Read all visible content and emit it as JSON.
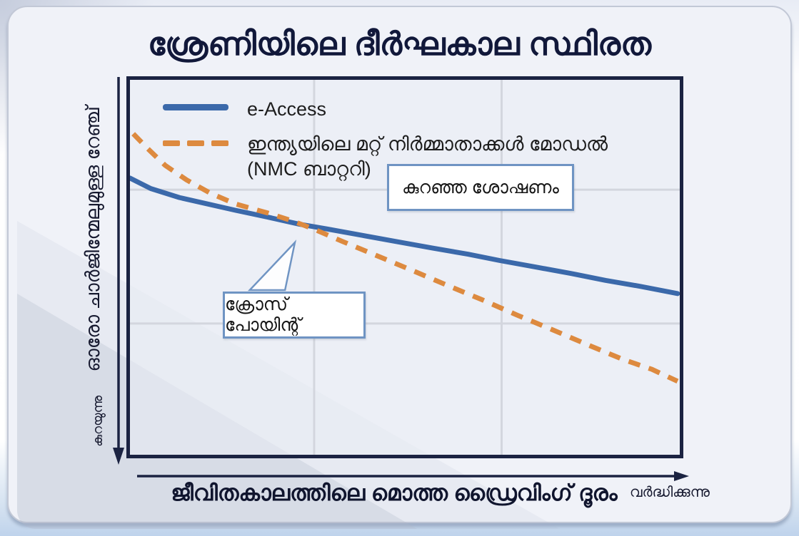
{
  "title": "ശ്രേണിയിലെ ദീർഘകാല സ്ഥിരത",
  "legend": {
    "series1": "e-Access",
    "series2_line1": "ഇന്ത്യയിലെ മറ്റ് നിർമ്മാതാക്കൾ മോഡൽ",
    "series2_line2": "(NMC ബാറ്ററി)"
  },
  "annotations": {
    "low_degradation": "കുറഞ്ഞ ശോഷണം",
    "cross_point": "ക്രോസ് പോയിന്റ്"
  },
  "y_axis": {
    "label": "ഓരോ ചാർജിന്മേലുമുള്ള റേഞ്ച്",
    "direction_label": "കുറയുന്നു"
  },
  "x_axis": {
    "label": "ജീവിതകാലത്തിലെ മൊത്ത ഡ്രൈവിംഗ് ദൂരം",
    "direction_label": "വർദ്ധിക്കുന്നു"
  },
  "colors": {
    "e_access": "#3b69aa",
    "nmc": "#dd8a3f",
    "navy": "#1b2342",
    "grid": "#d3d6de",
    "callout_border": "#6f94c3",
    "title_text": "#11183a",
    "card_bg": "#f0f2f8",
    "plot_bg": "#edeff5"
  },
  "chart_data": {
    "type": "line",
    "title": "ശ്രേണിയിലെ ദീർഘകാല സ്ഥിരത",
    "xlabel": "ജീവിതകാലത്തിലെ മൊത്ത ഡ്രൈവിംഗ് ദൂരം",
    "ylabel": "ഓരോ ചാർജിന്മേലുമുള്ള റേഞ്ച്",
    "units": "relative (no numeric scale shown on either axis)",
    "xlim": [
      0,
      100
    ],
    "ylim": [
      0,
      100
    ],
    "grid": {
      "x_pct": [
        33.5,
        67.6
      ],
      "y_pct_from_top": [
        29.3,
        65.0
      ]
    },
    "legend_position": "top-left inside plot",
    "cross_point": {
      "x": 33,
      "y": 60
    },
    "series": [
      {
        "name": "e-Access",
        "color": "#3b69aa",
        "style": "solid",
        "points": [
          [
            0,
            73.8
          ],
          [
            3.8,
            71.0
          ],
          [
            9.0,
            68.6
          ],
          [
            14.1,
            66.9
          ],
          [
            19.2,
            65.2
          ],
          [
            25.0,
            63.4
          ],
          [
            30.8,
            61.5
          ],
          [
            35.9,
            60.2
          ],
          [
            42.3,
            58.5
          ],
          [
            48.7,
            56.8
          ],
          [
            55.1,
            55.1
          ],
          [
            61.5,
            53.5
          ],
          [
            67.3,
            51.8
          ],
          [
            73.7,
            50.1
          ],
          [
            80.1,
            48.4
          ],
          [
            86.5,
            46.5
          ],
          [
            92.9,
            44.9
          ],
          [
            99.6,
            43.0
          ]
        ]
      },
      {
        "name": "ഇന്ത്യയിലെ മറ്റ് നിർമ്മാതാക്കൾ മോഡൽ (NMC ബാറ്ററി)",
        "color": "#dd8a3f",
        "style": "dashed",
        "dash": "17 13",
        "points": [
          [
            0.6,
            85.6
          ],
          [
            3.2,
            81.7
          ],
          [
            6.4,
            77.2
          ],
          [
            10.3,
            73.3
          ],
          [
            14.7,
            69.7
          ],
          [
            19.2,
            66.9
          ],
          [
            25.0,
            64.5
          ],
          [
            29.5,
            62.4
          ],
          [
            33.1,
            60.4
          ],
          [
            38.5,
            57.0
          ],
          [
            44.9,
            53.1
          ],
          [
            51.3,
            49.2
          ],
          [
            57.7,
            45.2
          ],
          [
            64.1,
            41.3
          ],
          [
            70.5,
            37.2
          ],
          [
            76.9,
            33.3
          ],
          [
            83.3,
            29.3
          ],
          [
            89.7,
            25.4
          ],
          [
            94.9,
            22.8
          ],
          [
            99.6,
            19.6
          ]
        ]
      }
    ]
  }
}
